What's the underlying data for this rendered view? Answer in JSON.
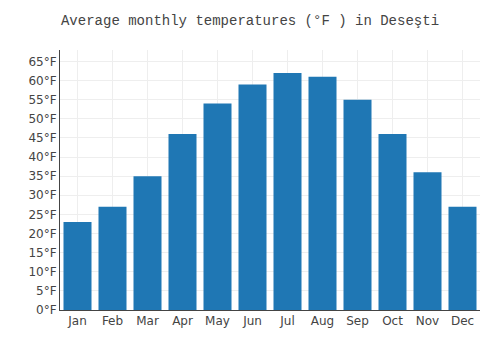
{
  "chart_data": {
    "type": "bar",
    "title": "Average monthly temperatures (°F ) in Deseşti",
    "categories": [
      "Jan",
      "Feb",
      "Mar",
      "Apr",
      "May",
      "Jun",
      "Jul",
      "Aug",
      "Sep",
      "Oct",
      "Nov",
      "Dec"
    ],
    "values": [
      23,
      27,
      35,
      46,
      54,
      59,
      62,
      61,
      55,
      46,
      36,
      27
    ],
    "ylim": [
      0,
      68
    ],
    "yticks": [
      {
        "value": 0,
        "label": "0°F"
      },
      {
        "value": 5,
        "label": "5°F"
      },
      {
        "value": 10,
        "label": "10°F"
      },
      {
        "value": 15,
        "label": "15°F"
      },
      {
        "value": 20,
        "label": "20°F"
      },
      {
        "value": 25,
        "label": "25°F"
      },
      {
        "value": 30,
        "label": "30°F"
      },
      {
        "value": 35,
        "label": "35°F"
      },
      {
        "value": 40,
        "label": "40°F"
      },
      {
        "value": 45,
        "label": "45°F"
      },
      {
        "value": 50,
        "label": "50°F"
      },
      {
        "value": 55,
        "label": "55°F"
      },
      {
        "value": 60,
        "label": "60°F"
      },
      {
        "value": 65,
        "label": "65°F"
      }
    ],
    "grid": true
  }
}
